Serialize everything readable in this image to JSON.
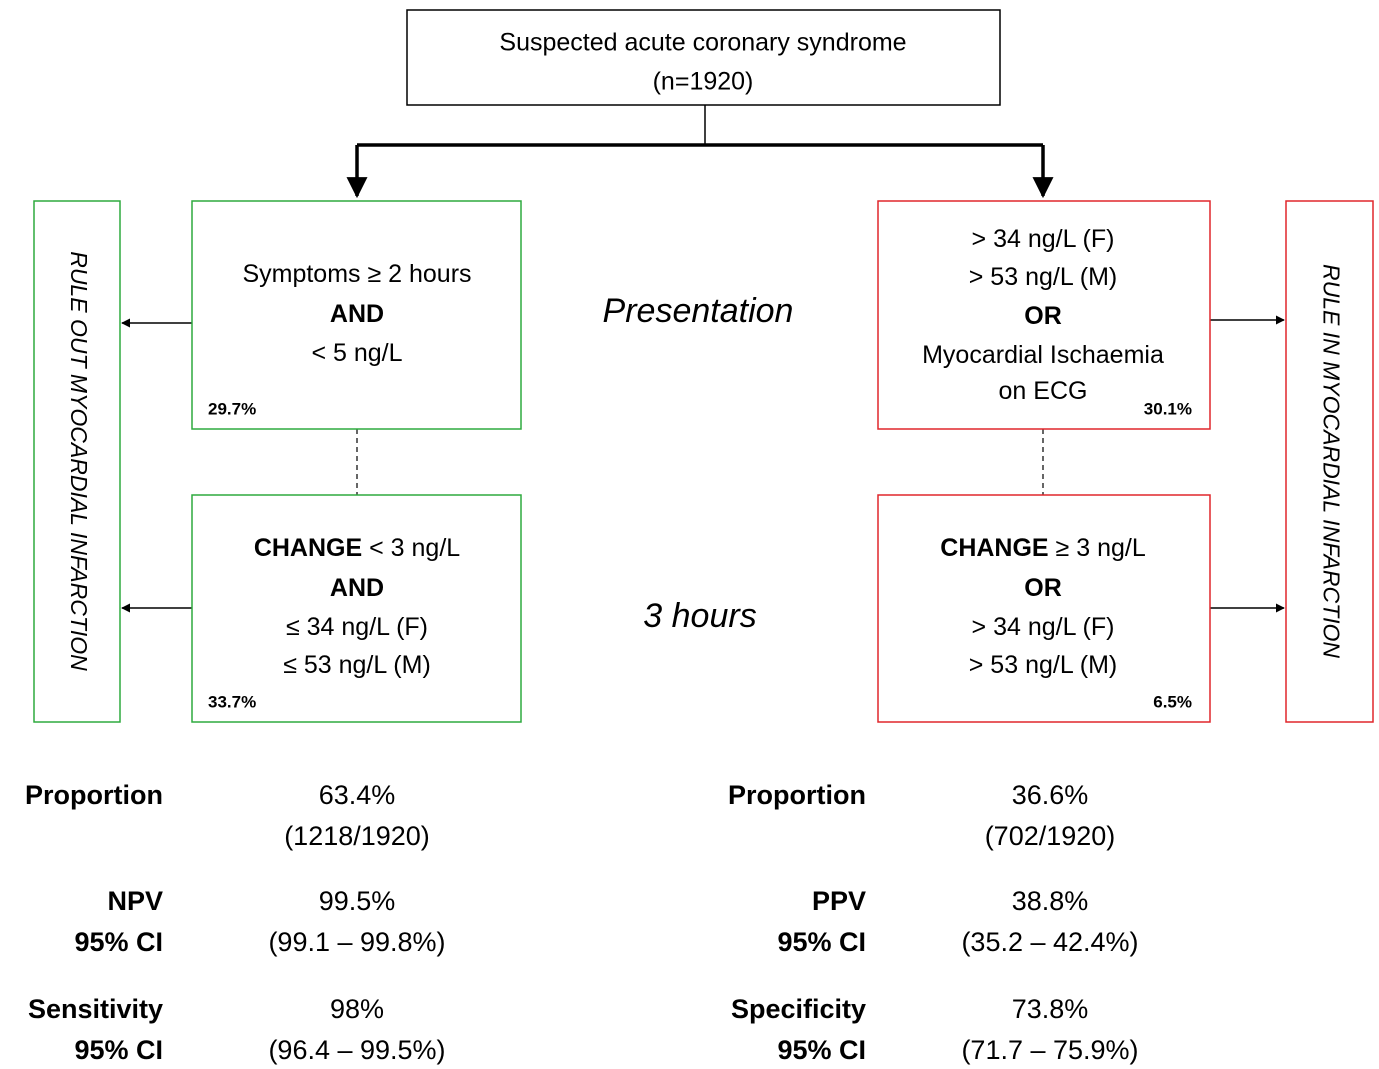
{
  "top": {
    "title": "Suspected acute coronary syndrome",
    "count": "(n=1920)"
  },
  "stages": [
    "Presentation",
    "3 hours"
  ],
  "left": {
    "side_label": "RULE OUT MYOCARDIAL INFARCTION",
    "boxes": [
      {
        "lines": [
          {
            "text": "Symptoms ≥ 2 hours"
          },
          {
            "bold": "AND"
          },
          {
            "text": "< 5 ng/L"
          }
        ],
        "percent": "29.7%"
      },
      {
        "lines": [
          {
            "bold": "CHANGE",
            "text": " < 3 ng/L"
          },
          {
            "bold": "AND"
          },
          {
            "text": "≤ 34 ng/L (F)"
          },
          {
            "text": "≤ 53 ng/L (M)"
          }
        ],
        "percent": "33.7%"
      }
    ],
    "stats": [
      {
        "labels": [
          "Proportion"
        ],
        "values": [
          "63.4%",
          "(1218/1920)"
        ]
      },
      {
        "labels": [
          "NPV",
          "95% CI"
        ],
        "values": [
          "99.5%",
          "(99.1 – 99.8%)"
        ]
      },
      {
        "labels": [
          "Sensitivity",
          "95% CI"
        ],
        "values": [
          "98%",
          "(96.4 – 99.5%)"
        ]
      }
    ]
  },
  "right": {
    "side_label": "RULE IN MYOCARDIAL INFARCTION",
    "boxes": [
      {
        "lines": [
          {
            "text": "> 34 ng/L (F)"
          },
          {
            "text": "> 53 ng/L (M)"
          },
          {
            "bold": "OR"
          },
          {
            "text": "Myocardial Ischaemia"
          },
          {
            "text": "on ECG"
          }
        ],
        "percent": "30.1%"
      },
      {
        "lines": [
          {
            "bold": "CHANGE",
            "text": " ≥ 3 ng/L"
          },
          {
            "bold": "OR"
          },
          {
            "text": "> 34 ng/L (F)"
          },
          {
            "text": "> 53 ng/L (M)"
          }
        ],
        "percent": "6.5%"
      }
    ],
    "stats": [
      {
        "labels": [
          "Proportion"
        ],
        "values": [
          "36.6%",
          "(702/1920)"
        ]
      },
      {
        "labels": [
          "PPV",
          "95% CI"
        ],
        "values": [
          "38.8%",
          "(35.2 – 42.4%)"
        ]
      },
      {
        "labels": [
          "Specificity",
          "95% CI"
        ],
        "values": [
          "73.8%",
          "(71.7 – 75.9%)"
        ]
      }
    ]
  }
}
